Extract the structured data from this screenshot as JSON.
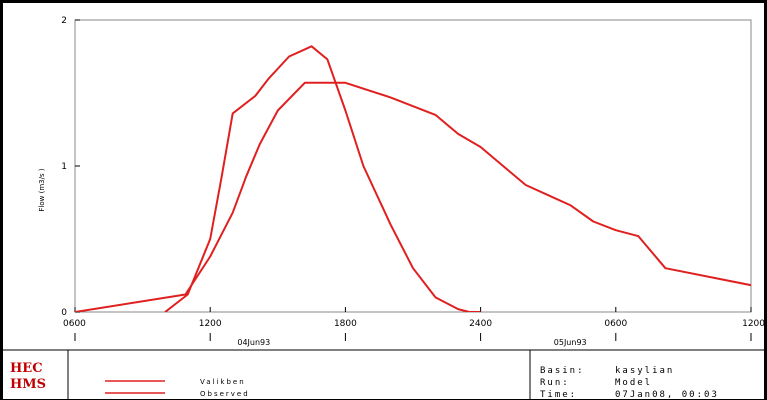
{
  "chart_data": {
    "type": "line",
    "ylabel": "Flow (m3/s    )",
    "ylim": [
      0,
      2
    ],
    "yticks": [
      "0",
      "1",
      "2"
    ],
    "xticks": [
      {
        "v": 0,
        "label": "0600"
      },
      {
        "v": 6,
        "label": "1200"
      },
      {
        "v": 12,
        "label": "1800"
      },
      {
        "v": 18,
        "label": "2400"
      },
      {
        "v": 24,
        "label": "0600"
      },
      {
        "v": 30,
        "label": "1200"
      }
    ],
    "dates": [
      {
        "v": 12,
        "label": "04Jun93"
      },
      {
        "v": 24,
        "label": "05Jun93"
      }
    ],
    "xlim": [
      0,
      30
    ],
    "series": [
      {
        "name": "Valikben",
        "color": "#e02020",
        "x": [
          0,
          4.9,
          6.0,
          7.0,
          7.6,
          8.2,
          9.0,
          10.2,
          11.0,
          12.0,
          14.0,
          16.0,
          17.0,
          18.0,
          19.0,
          20.0,
          21.0,
          22.0,
          23.0,
          24.0,
          25.0,
          26.2,
          36.0
        ],
        "y": [
          0,
          0.12,
          0.38,
          0.68,
          0.93,
          1.15,
          1.38,
          1.57,
          1.57,
          1.57,
          1.47,
          1.35,
          1.22,
          1.13,
          1.0,
          0.87,
          0.8,
          0.73,
          0.62,
          0.56,
          0.52,
          0.3,
          0
        ]
      },
      {
        "name": "Observed",
        "color": "#e02020",
        "x": [
          4.0,
          5.0,
          6.0,
          6.5,
          7.0,
          8.0,
          8.6,
          9.5,
          10.5,
          11.2,
          12.0,
          12.8,
          14.0,
          15.0,
          16.0,
          17.0,
          17.5,
          18.0
        ],
        "y": [
          0,
          0.12,
          0.5,
          0.92,
          1.36,
          1.48,
          1.6,
          1.75,
          1.82,
          1.73,
          1.38,
          1.0,
          0.6,
          0.3,
          0.1,
          0.02,
          0,
          0
        ]
      }
    ]
  },
  "footer": {
    "logo_line1": "HEC",
    "logo_line2": "HMS",
    "legend": [
      "Valikben",
      "Observed"
    ],
    "basin_label": "Basin:",
    "basin_value": "kasylian",
    "run_label": "Run:",
    "run_value": "Model",
    "time_label": "Time:",
    "time_value": "07Jan08, 00:03"
  }
}
